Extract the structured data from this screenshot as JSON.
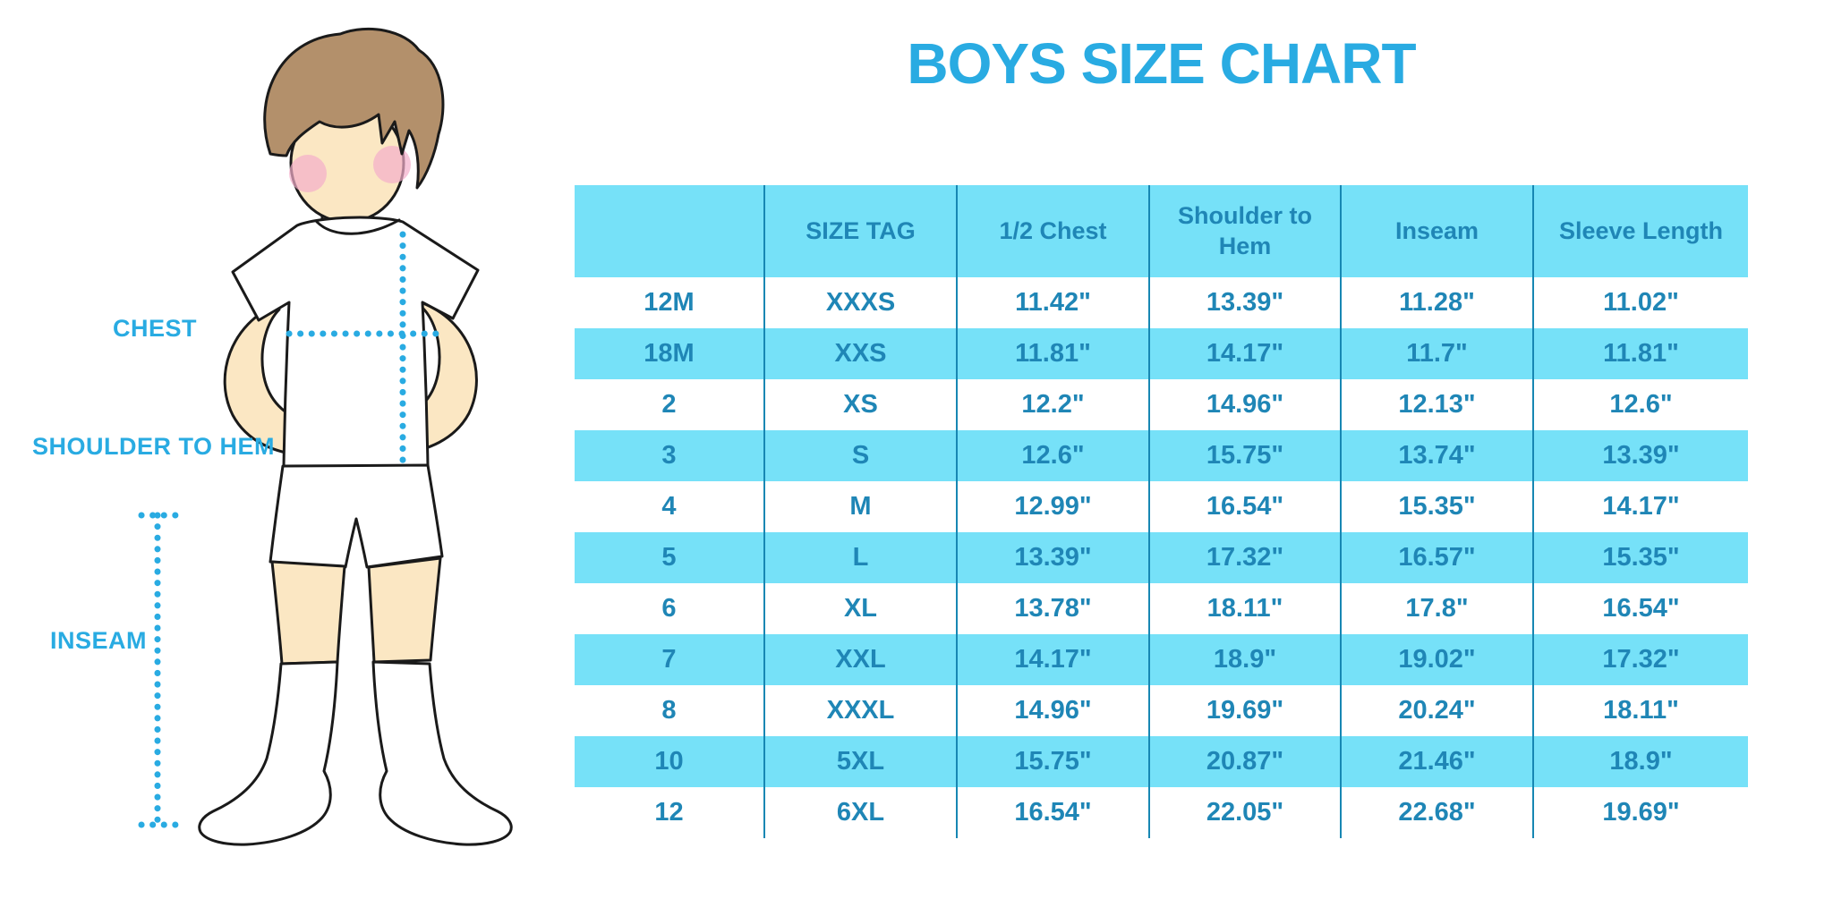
{
  "title": "BOYS SIZE CHART",
  "colors": {
    "accent": "#29abe2",
    "band": "#76e1f8",
    "table_text": "#1f86b6",
    "divider": "#1787b3",
    "outline": "#1a1a1a",
    "skin": "#fbe7c3",
    "hair": "#b3906b",
    "cheek": "#f3aecb",
    "garment": "#ffffff"
  },
  "diagram": {
    "labels": {
      "chest": "CHEST",
      "shoulder_to_hem": "SHOULDER TO HEM",
      "inseam": "INSEAM"
    }
  },
  "chart_data": {
    "type": "table",
    "title": "BOYS SIZE CHART",
    "columns": [
      "",
      "SIZE TAG",
      "1/2 Chest",
      "Shoulder to Hem",
      "Inseam",
      "Sleeve Length"
    ],
    "rows": [
      [
        "12M",
        "XXXS",
        "11.42\"",
        "13.39\"",
        "11.28\"",
        "11.02\""
      ],
      [
        "18M",
        "XXS",
        "11.81\"",
        "14.17\"",
        "11.7\"",
        "11.81\""
      ],
      [
        "2",
        "XS",
        "12.2\"",
        "14.96\"",
        "12.13\"",
        "12.6\""
      ],
      [
        "3",
        "S",
        "12.6\"",
        "15.75\"",
        "13.74\"",
        "13.39\""
      ],
      [
        "4",
        "M",
        "12.99\"",
        "16.54\"",
        "15.35\"",
        "14.17\""
      ],
      [
        "5",
        "L",
        "13.39\"",
        "17.32\"",
        "16.57\"",
        "15.35\""
      ],
      [
        "6",
        "XL",
        "13.78\"",
        "18.11\"",
        "17.8\"",
        "16.54\""
      ],
      [
        "7",
        "XXL",
        "14.17\"",
        "18.9\"",
        "19.02\"",
        "17.32\""
      ],
      [
        "8",
        "XXXL",
        "14.96\"",
        "19.69\"",
        "20.24\"",
        "18.11\""
      ],
      [
        "10",
        "5XL",
        "15.75\"",
        "20.87\"",
        "21.46\"",
        "18.9\""
      ],
      [
        "12",
        "6XL",
        "16.54\"",
        "22.05\"",
        "22.68\"",
        "19.69\""
      ]
    ]
  }
}
